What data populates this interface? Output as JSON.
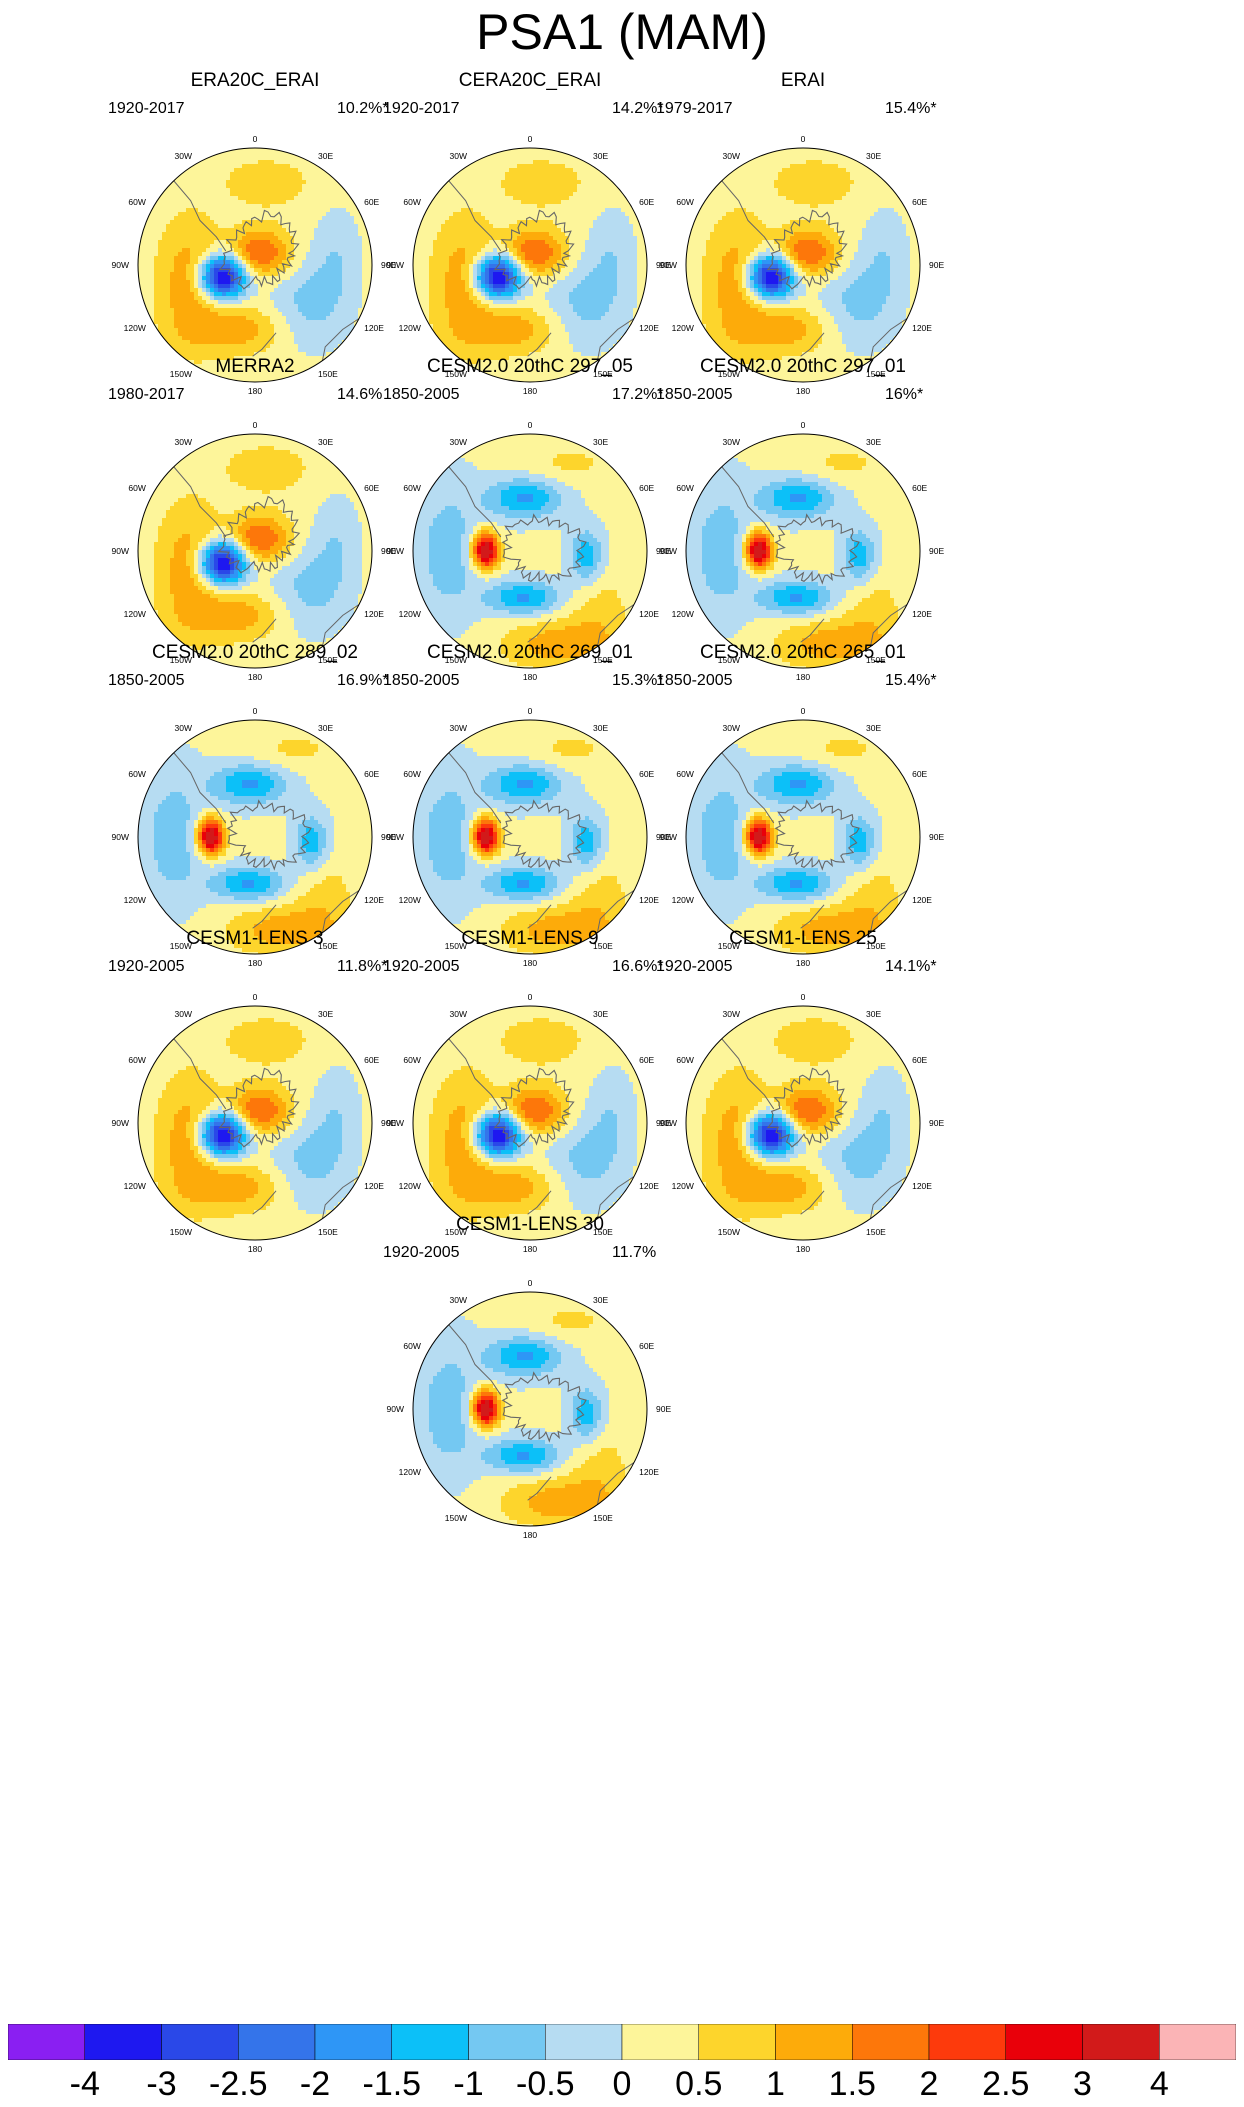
{
  "title": "PSA1 (MAM)",
  "panels": [
    {
      "title": "ERA20C_ERAI",
      "years": "1920-2017",
      "variance": "10.2%*",
      "center_lon": -150,
      "pattern": "negW"
    },
    {
      "title": "CERA20C_ERAI",
      "years": "1920-2017",
      "variance": "14.2%*",
      "center_lon": -150,
      "pattern": "negW"
    },
    {
      "title": "ERAI",
      "years": "1979-2017",
      "variance": "15.4%*",
      "center_lon": -150,
      "pattern": "negW"
    },
    {
      "title": "MERRA2",
      "years": "1980-2017",
      "variance": "14.6%",
      "center_lon": -145,
      "pattern": "negW"
    },
    {
      "title": "CESM2.0 20thC 297_05",
      "years": "1850-2005",
      "variance": "17.2%*",
      "center_lon": -95,
      "pattern": "posW"
    },
    {
      "title": "CESM2.0 20thC 297_01",
      "years": "1850-2005",
      "variance": "16%*",
      "center_lon": -95,
      "pattern": "posW"
    },
    {
      "title": "CESM2.0 20thC 289_02",
      "years": "1850-2005",
      "variance": "16.9%*",
      "center_lon": -95,
      "pattern": "posW"
    },
    {
      "title": "CESM2.0 20thC 269_01",
      "years": "1850-2005",
      "variance": "15.3%*",
      "center_lon": -95,
      "pattern": "posW"
    },
    {
      "title": "CESM2.0 20thC 265_01",
      "years": "1850-2005",
      "variance": "15.4%*",
      "center_lon": -95,
      "pattern": "posW"
    },
    {
      "title": "CESM1-LENS 3",
      "years": "1920-2005",
      "variance": "11.8%*",
      "center_lon": -150,
      "pattern": "negW"
    },
    {
      "title": "CESM1-LENS 9",
      "years": "1920-2005",
      "variance": "16.6%*",
      "center_lon": -150,
      "pattern": "negW"
    },
    {
      "title": "CESM1-LENS 25",
      "years": "1920-2005",
      "variance": "14.1%*",
      "center_lon": -150,
      "pattern": "negW"
    },
    {
      "title": "CESM1-LENS 30",
      "years": "1920-2005",
      "variance": "11.7%",
      "center_lon": -95,
      "pattern": "posW"
    }
  ],
  "lon_labels": [
    "0",
    "30E",
    "60E",
    "90E",
    "120E",
    "150E",
    "180",
    "150W",
    "120W",
    "90W",
    "60W",
    "30W"
  ],
  "chart_data": {
    "type": "heatmap",
    "title": "PSA1 (MAM)",
    "projection": "South polar stereographic",
    "colorbar": {
      "levels": [
        "-4",
        "-3",
        "-2.5",
        "-2",
        "-1.5",
        "-1",
        "-0.5",
        "0",
        "0.5",
        "1",
        "1.5",
        "2",
        "2.5",
        "3",
        "4"
      ],
      "level_values": [
        -4,
        -3,
        -2.5,
        -2,
        -1.5,
        -1,
        -0.5,
        0,
        0.5,
        1,
        1.5,
        2,
        2.5,
        3,
        4
      ],
      "colors": [
        "#8a1ff2",
        "#1e18f0",
        "#2a48e8",
        "#3474ea",
        "#2e96f6",
        "#0cc0f8",
        "#74c8f2",
        "#b6dcf2",
        "#fdf59a",
        "#fdd52c",
        "#fdab0a",
        "#fd770a",
        "#fd3a0c",
        "#e9000a",
        "#d21a1a",
        "#fbb4b6"
      ]
    }
  }
}
